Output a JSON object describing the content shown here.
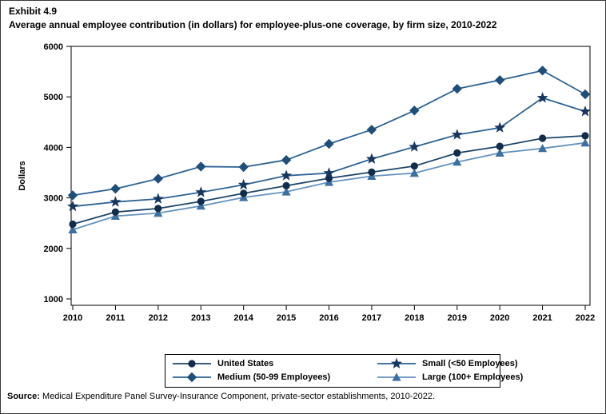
{
  "page": {
    "exhibit_label": "Exhibit 4.9",
    "source_label": "Source:",
    "source_text": " Medical Expenditure Panel Survey-Insurance Component, private-sector establishments, 2010-2022."
  },
  "chart_data": {
    "type": "line",
    "title": "Average annual employee contribution (in dollars) for employee-plus-one coverage, by firm size, 2010-2022",
    "xlabel": "",
    "ylabel": "Dollars",
    "ylim": [
      1000,
      6000
    ],
    "yticks": [
      1000,
      2000,
      3000,
      4000,
      5000,
      6000
    ],
    "grid": false,
    "legend_position": "bottom",
    "categories": [
      "2010",
      "2011",
      "2012",
      "2013",
      "2014",
      "2015",
      "2016",
      "2017",
      "2018",
      "2019",
      "2020",
      "2021",
      "2022"
    ],
    "series": [
      {
        "name": "United States",
        "marker": "circle",
        "marker_color": "#122c4b",
        "line_color": "#1d4568",
        "values": [
          2480,
          2720,
          2790,
          2930,
          3090,
          3240,
          3390,
          3510,
          3630,
          3890,
          4020,
          4180,
          4230
        ]
      },
      {
        "name": "Medium (50-99 Employees)",
        "marker": "diamond",
        "marker_color": "#1f4e79",
        "line_color": "#2d6294",
        "values": [
          3050,
          3180,
          3380,
          3620,
          3610,
          3750,
          4070,
          4350,
          4730,
          5160,
          5330,
          5520,
          5050
        ]
      },
      {
        "name": "Small (<50 Employees)",
        "marker": "star",
        "marker_color": "#17375e",
        "line_color": "#2d6294",
        "values": [
          2830,
          2920,
          2980,
          3110,
          3260,
          3440,
          3490,
          3770,
          4010,
          4250,
          4390,
          4980,
          4710
        ]
      },
      {
        "name": "Large (100+ Employees)",
        "marker": "triangle",
        "marker_color": "#3d6fa0",
        "line_color": "#6493be",
        "values": [
          2370,
          2640,
          2700,
          2840,
          3010,
          3120,
          3310,
          3430,
          3490,
          3710,
          3890,
          3980,
          4090
        ]
      }
    ],
    "legend_display_order": [
      0,
      2,
      1,
      3
    ],
    "draw_order": [
      3,
      0,
      1,
      2
    ]
  }
}
